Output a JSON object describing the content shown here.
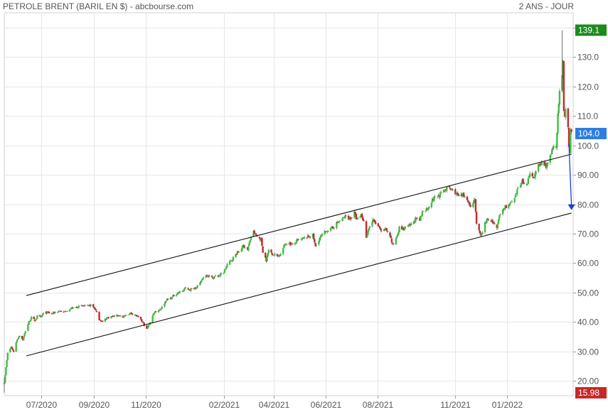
{
  "header": {
    "title": "PETROLE BRENT (BARIL EN $) - abcbourse.com",
    "period": "2 ANS - JOUR"
  },
  "chart_data": {
    "type": "candlestick",
    "ylim": [
      15,
      145
    ],
    "y_ticks": [
      20,
      30,
      40,
      50,
      60,
      70,
      80,
      90,
      100,
      110,
      120,
      130,
      140
    ],
    "y_tick_labels": [
      "20.00",
      "30.00",
      "40.00",
      "50.00",
      "60.00",
      "70.00",
      "80.00",
      "90.00",
      "100.0",
      "110.0",
      "120.0",
      "130.0",
      "140.0"
    ],
    "x_start": "2020-05-18",
    "x_end": "2022-03-20",
    "x_ticks": [
      {
        "date": "2020-07-01",
        "label": "07/2020"
      },
      {
        "date": "2020-09-01",
        "label": "09/2020"
      },
      {
        "date": "2020-11-01",
        "label": "11/2020"
      },
      {
        "date": "2021-02-01",
        "label": "02/2021"
      },
      {
        "date": "2021-04-01",
        "label": "04/2021"
      },
      {
        "date": "2021-06-01",
        "label": "06/2021"
      },
      {
        "date": "2021-08-01",
        "label": "08/2021"
      },
      {
        "date": "2021-11-01",
        "label": "11/2021"
      },
      {
        "date": "2022-01-01",
        "label": "01/2022"
      }
    ],
    "up_color": "#3fbf3f",
    "down_color": "#c62828",
    "grid": true,
    "badges": [
      {
        "label": "139.1",
        "value": 139.1,
        "color": "#1e8a1e"
      },
      {
        "label": "104.0",
        "value": 104.0,
        "color": "#2e7de0"
      },
      {
        "label": "15.98",
        "value": 15.98,
        "color": "#c62828"
      }
    ],
    "channel_lines": [
      {
        "from": {
          "date": "2020-06-13",
          "value": 49.0
        },
        "to": {
          "date": "2022-03-18",
          "value": 97.0
        }
      },
      {
        "from": {
          "date": "2020-06-13",
          "value": 28.5
        },
        "to": {
          "date": "2022-03-18",
          "value": 77.0
        }
      }
    ],
    "target_arrow": {
      "from": {
        "date": "2022-03-15",
        "value": 100.5
      },
      "to": {
        "date": "2022-03-18",
        "value": 78.0
      },
      "color": "#1a3fd6"
    },
    "closes": [
      [
        "2020-05-18",
        19.5
      ],
      [
        "2020-05-20",
        24.5
      ],
      [
        "2020-05-22",
        29.5
      ],
      [
        "2020-05-26",
        31.5
      ],
      [
        "2020-05-29",
        30.0
      ],
      [
        "2020-06-02",
        34.0
      ],
      [
        "2020-06-05",
        35.5
      ],
      [
        "2020-06-09",
        34.0
      ],
      [
        "2020-06-12",
        37.0
      ],
      [
        "2020-06-16",
        40.0
      ],
      [
        "2020-06-19",
        41.5
      ],
      [
        "2020-06-23",
        40.5
      ],
      [
        "2020-06-26",
        42.0
      ],
      [
        "2020-06-30",
        41.5
      ],
      [
        "2020-07-03",
        43.0
      ],
      [
        "2020-07-08",
        43.2
      ],
      [
        "2020-07-13",
        42.8
      ],
      [
        "2020-07-17",
        43.3
      ],
      [
        "2020-07-22",
        43.8
      ],
      [
        "2020-07-27",
        43.3
      ],
      [
        "2020-07-31",
        44.0
      ],
      [
        "2020-08-05",
        44.6
      ],
      [
        "2020-08-10",
        45.0
      ],
      [
        "2020-08-14",
        45.2
      ],
      [
        "2020-08-19",
        45.5
      ],
      [
        "2020-08-24",
        45.3
      ],
      [
        "2020-08-28",
        45.8
      ],
      [
        "2020-09-02",
        44.5
      ],
      [
        "2020-09-07",
        41.0
      ],
      [
        "2020-09-11",
        40.0
      ],
      [
        "2020-09-16",
        41.5
      ],
      [
        "2020-09-21",
        41.8
      ],
      [
        "2020-09-25",
        42.0
      ],
      [
        "2020-09-30",
        42.3
      ],
      [
        "2020-10-05",
        41.5
      ],
      [
        "2020-10-09",
        42.5
      ],
      [
        "2020-10-14",
        43.0
      ],
      [
        "2020-10-19",
        42.5
      ],
      [
        "2020-10-23",
        41.5
      ],
      [
        "2020-10-28",
        40.0
      ],
      [
        "2020-11-02",
        37.5
      ],
      [
        "2020-11-06",
        40.0
      ],
      [
        "2020-11-11",
        43.5
      ],
      [
        "2020-11-16",
        44.0
      ],
      [
        "2020-11-20",
        45.0
      ],
      [
        "2020-11-25",
        47.5
      ],
      [
        "2020-11-30",
        48.0
      ],
      [
        "2020-12-04",
        49.0
      ],
      [
        "2020-12-09",
        50.0
      ],
      [
        "2020-12-14",
        50.5
      ],
      [
        "2020-12-18",
        51.5
      ],
      [
        "2020-12-23",
        51.0
      ],
      [
        "2020-12-28",
        51.5
      ],
      [
        "2021-01-04",
        53.0
      ],
      [
        "2021-01-08",
        55.5
      ],
      [
        "2021-01-13",
        56.0
      ],
      [
        "2021-01-18",
        55.0
      ],
      [
        "2021-01-22",
        55.5
      ],
      [
        "2021-01-27",
        55.8
      ],
      [
        "2021-02-01",
        57.0
      ],
      [
        "2021-02-05",
        59.5
      ],
      [
        "2021-02-10",
        61.0
      ],
      [
        "2021-02-15",
        63.0
      ],
      [
        "2021-02-19",
        64.0
      ],
      [
        "2021-02-24",
        66.0
      ],
      [
        "2021-03-01",
        64.5
      ],
      [
        "2021-03-05",
        69.0
      ],
      [
        "2021-03-08",
        70.5
      ],
      [
        "2021-03-12",
        69.0
      ],
      [
        "2021-03-17",
        68.0
      ],
      [
        "2021-03-19",
        64.0
      ],
      [
        "2021-03-23",
        61.0
      ],
      [
        "2021-03-26",
        64.5
      ],
      [
        "2021-03-31",
        63.0
      ],
      [
        "2021-04-05",
        62.5
      ],
      [
        "2021-04-09",
        63.0
      ],
      [
        "2021-04-14",
        66.5
      ],
      [
        "2021-04-19",
        67.0
      ],
      [
        "2021-04-23",
        66.0
      ],
      [
        "2021-04-28",
        67.5
      ],
      [
        "2021-05-03",
        68.0
      ],
      [
        "2021-05-07",
        68.5
      ],
      [
        "2021-05-12",
        69.0
      ],
      [
        "2021-05-17",
        69.5
      ],
      [
        "2021-05-20",
        65.5
      ],
      [
        "2021-05-25",
        68.5
      ],
      [
        "2021-05-28",
        69.5
      ],
      [
        "2021-06-02",
        71.0
      ],
      [
        "2021-06-07",
        71.5
      ],
      [
        "2021-06-11",
        72.5
      ],
      [
        "2021-06-16",
        74.0
      ],
      [
        "2021-06-21",
        75.0
      ],
      [
        "2021-06-25",
        76.0
      ],
      [
        "2021-06-30",
        75.0
      ],
      [
        "2021-07-05",
        77.0
      ],
      [
        "2021-07-08",
        74.5
      ],
      [
        "2021-07-13",
        76.5
      ],
      [
        "2021-07-16",
        74.0
      ],
      [
        "2021-07-19",
        69.0
      ],
      [
        "2021-07-22",
        72.0
      ],
      [
        "2021-07-27",
        74.5
      ],
      [
        "2021-08-02",
        72.5
      ],
      [
        "2021-08-06",
        70.5
      ],
      [
        "2021-08-11",
        71.5
      ],
      [
        "2021-08-16",
        69.5
      ],
      [
        "2021-08-19",
        66.0
      ],
      [
        "2021-08-23",
        68.5
      ],
      [
        "2021-08-27",
        72.0
      ],
      [
        "2021-09-01",
        71.5
      ],
      [
        "2021-09-06",
        72.5
      ],
      [
        "2021-09-10",
        73.0
      ],
      [
        "2021-09-15",
        75.0
      ],
      [
        "2021-09-20",
        74.5
      ],
      [
        "2021-09-24",
        78.0
      ],
      [
        "2021-09-29",
        78.5
      ],
      [
        "2021-10-04",
        81.0
      ],
      [
        "2021-10-08",
        82.5
      ],
      [
        "2021-10-13",
        83.0
      ],
      [
        "2021-10-18",
        84.5
      ],
      [
        "2021-10-22",
        85.5
      ],
      [
        "2021-10-27",
        85.0
      ],
      [
        "2021-11-01",
        84.0
      ],
      [
        "2021-11-05",
        82.5
      ],
      [
        "2021-11-10",
        83.0
      ],
      [
        "2021-11-15",
        82.0
      ],
      [
        "2021-11-19",
        79.0
      ],
      [
        "2021-11-24",
        82.0
      ],
      [
        "2021-11-26",
        73.0
      ],
      [
        "2021-12-01",
        69.0
      ],
      [
        "2021-12-06",
        73.5
      ],
      [
        "2021-12-10",
        75.0
      ],
      [
        "2021-12-15",
        74.0
      ],
      [
        "2021-12-20",
        71.5
      ],
      [
        "2021-12-23",
        76.0
      ],
      [
        "2021-12-29",
        79.0
      ],
      [
        "2022-01-04",
        80.0
      ],
      [
        "2022-01-10",
        81.5
      ],
      [
        "2022-01-14",
        85.5
      ],
      [
        "2022-01-19",
        88.0
      ],
      [
        "2022-01-24",
        86.5
      ],
      [
        "2022-01-28",
        90.0
      ],
      [
        "2022-02-02",
        89.5
      ],
      [
        "2022-02-07",
        93.0
      ],
      [
        "2022-02-11",
        94.0
      ],
      [
        "2022-02-16",
        93.0
      ],
      [
        "2022-02-21",
        96.0
      ],
      [
        "2022-02-24",
        99.0
      ],
      [
        "2022-02-28",
        100.0
      ],
      [
        "2022-03-02",
        110.0
      ],
      [
        "2022-03-04",
        118.0
      ],
      [
        "2022-03-07",
        123.0
      ],
      [
        "2022-03-08",
        128.0
      ],
      [
        "2022-03-09",
        111.0
      ],
      [
        "2022-03-10",
        109.0
      ],
      [
        "2022-03-11",
        112.0
      ],
      [
        "2022-03-14",
        107.0
      ],
      [
        "2022-03-15",
        99.5
      ],
      [
        "2022-03-16",
        98.0
      ],
      [
        "2022-03-17",
        106.0
      ],
      [
        "2022-03-18",
        104.0
      ]
    ]
  }
}
